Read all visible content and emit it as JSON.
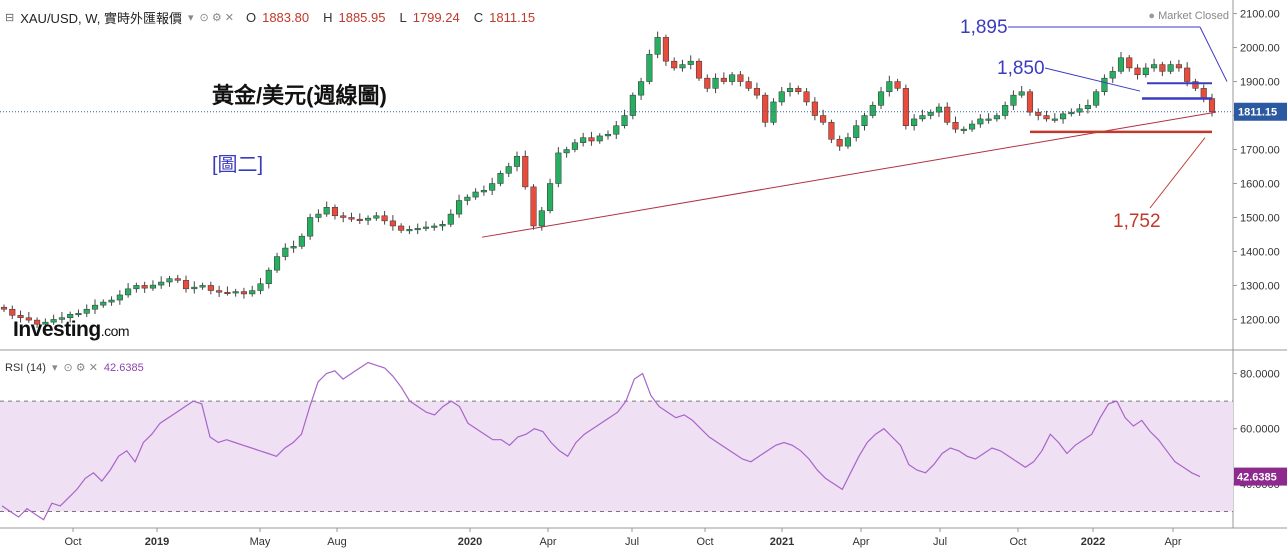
{
  "header": {
    "symbol": "XAU/USD, W, 實時外匯報價",
    "open_label": "O",
    "open": "1883.80",
    "high_label": "H",
    "high": "1885.95",
    "low_label": "L",
    "low": "1799.24",
    "close_label": "C",
    "close": "1811.15",
    "status": "Market Closed"
  },
  "rsi_header": {
    "label": "RSI (14)",
    "value": "42.6385"
  },
  "logo": {
    "text": "Investing",
    "suffix": ".com"
  },
  "colors": {
    "up": "#27ae60",
    "down": "#e74c3c",
    "trend": "#b03040",
    "blue_line": "#3b3bbf",
    "red_line": "#c0392b",
    "rsi": "#a865c9",
    "rsi_band": "#f0e0f4"
  },
  "chart_data": [
    {
      "type": "candlestick",
      "title": "黃金/美元(週線圖)",
      "subtitle": "[圖二]",
      "x_ticks": [
        "Oct",
        "2019",
        "May",
        "Aug",
        "2020",
        "Apr",
        "Jul",
        "Oct",
        "2021",
        "Apr",
        "Jul",
        "Oct",
        "2022",
        "Apr"
      ],
      "y_ticks": [
        1200,
        1300,
        1400,
        1500,
        1600,
        1700,
        1800,
        1900,
        2000,
        2100
      ],
      "ylim": [
        1110,
        2140
      ],
      "last_price": "1811.15",
      "annotations": [
        "1,895",
        "1,850",
        "1,752"
      ],
      "levels": [
        1895,
        1850,
        1752
      ],
      "series": [
        {
          "name": "close",
          "values": [
            1230,
            1212,
            1205,
            1198,
            1186,
            1192,
            1200,
            1205,
            1215,
            1218,
            1230,
            1242,
            1251,
            1257,
            1272,
            1290,
            1300,
            1292,
            1301,
            1310,
            1320,
            1315,
            1290,
            1295,
            1300,
            1285,
            1280,
            1278,
            1282,
            1275,
            1285,
            1305,
            1345,
            1385,
            1410,
            1415,
            1445,
            1500,
            1510,
            1530,
            1505,
            1500,
            1495,
            1492,
            1498,
            1505,
            1490,
            1475,
            1462,
            1465,
            1468,
            1472,
            1475,
            1480,
            1510,
            1550,
            1560,
            1575,
            1580,
            1600,
            1630,
            1650,
            1680,
            1590,
            1475,
            1520,
            1600,
            1690,
            1700,
            1720,
            1735,
            1725,
            1740,
            1745,
            1770,
            1800,
            1860,
            1900,
            1980,
            2030,
            1960,
            1940,
            1950,
            1960,
            1910,
            1880,
            1910,
            1900,
            1920,
            1900,
            1880,
            1860,
            1780,
            1840,
            1870,
            1880,
            1870,
            1840,
            1800,
            1780,
            1730,
            1710,
            1735,
            1770,
            1800,
            1830,
            1870,
            1900,
            1880,
            1770,
            1790,
            1800,
            1810,
            1825,
            1780,
            1760,
            1760,
            1775,
            1790,
            1790,
            1800,
            1830,
            1860,
            1870,
            1810,
            1800,
            1790,
            1790,
            1805,
            1810,
            1820,
            1830,
            1870,
            1910,
            1930,
            1970,
            1940,
            1920,
            1940,
            1950,
            1930,
            1950,
            1940,
            1900,
            1880,
            1850,
            1811
          ]
        }
      ]
    },
    {
      "type": "line",
      "title": "RSI (14)",
      "y_ticks": [
        40,
        60,
        80
      ],
      "ylim": [
        24,
        86
      ],
      "band": [
        30,
        70
      ],
      "series": [
        {
          "name": "RSI (14)",
          "values": [
            32,
            30,
            28,
            31,
            29,
            27,
            33,
            32,
            35,
            38,
            42,
            44,
            41,
            45,
            50,
            52,
            48,
            55,
            58,
            62,
            64,
            66,
            68,
            70,
            69,
            57,
            55,
            56,
            55,
            54,
            53,
            52,
            51,
            50,
            53,
            55,
            58,
            68,
            77,
            80,
            81,
            78,
            80,
            82,
            84,
            83,
            82,
            79,
            75,
            70,
            68,
            66,
            65,
            68,
            70,
            68,
            62,
            60,
            58,
            56,
            56,
            54,
            57,
            58,
            60,
            59,
            55,
            52,
            50,
            55,
            58,
            60,
            62,
            64,
            66,
            70,
            78,
            80,
            72,
            68,
            66,
            64,
            65,
            63,
            60,
            57,
            55,
            53,
            51,
            49,
            48,
            50,
            52,
            54,
            55,
            54,
            52,
            49,
            45,
            42,
            40,
            38,
            44,
            50,
            55,
            58,
            60,
            57,
            54,
            47,
            45,
            44,
            47,
            51,
            53,
            52,
            50,
            49,
            51,
            53,
            52,
            50,
            48,
            46,
            48,
            52,
            58,
            55,
            51,
            54,
            56,
            58,
            64,
            69,
            70,
            64,
            61,
            63,
            59,
            56,
            52,
            48,
            46,
            44,
            42.6385
          ]
        }
      ]
    }
  ]
}
